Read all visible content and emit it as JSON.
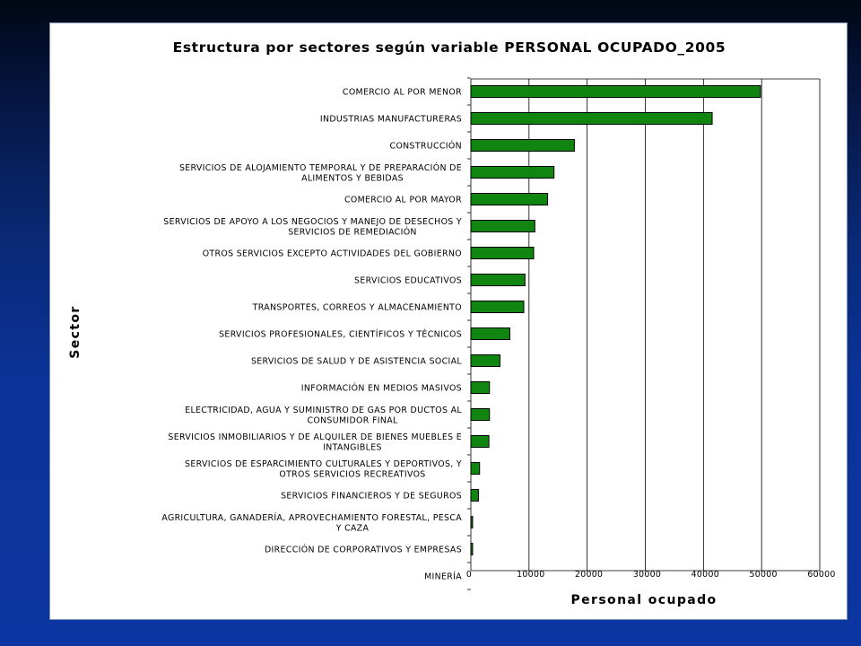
{
  "chart_data": {
    "type": "bar",
    "orientation": "horizontal",
    "title": "Estructura por sectores según variable PERSONAL OCUPADO_2005",
    "xlabel": "Personal ocupado",
    "ylabel": "Sector",
    "xlim": [
      0,
      60000
    ],
    "xticks": [
      "0",
      "10000",
      "20000",
      "30000",
      "40000",
      "50000",
      "60000"
    ],
    "grid": true,
    "bar_color": "#108510",
    "categories": [
      [
        "COMERCIO AL POR MENOR"
      ],
      [
        "INDUSTRIAS MANUFACTURERAS"
      ],
      [
        "CONSTRUCCIÓN"
      ],
      [
        "SERVICIOS DE ALOJAMIENTO TEMPORAL Y DE PREPARACIÓN DE",
        "ALIMENTOS Y BEBIDAS"
      ],
      [
        "COMERCIO AL POR MAYOR"
      ],
      [
        "SERVICIOS DE APOYO A LOS NEGOCIOS Y MANEJO DE DESECHOS Y",
        "SERVICIOS DE REMEDIACIÓN"
      ],
      [
        "OTROS SERVICIOS EXCEPTO ACTIVIDADES DEL GOBIERNO"
      ],
      [
        "SERVICIOS EDUCATIVOS"
      ],
      [
        "TRANSPORTES, CORREOS Y ALMACENAMIENTO"
      ],
      [
        "SERVICIOS PROFESIONALES, CIENTÍFICOS Y TÉCNICOS"
      ],
      [
        "SERVICIOS DE SALUD Y DE ASISTENCIA SOCIAL"
      ],
      [
        "INFORMACIÓN EN MEDIOS MASIVOS"
      ],
      [
        "ELECTRICIDAD, AGUA Y SUMINISTRO DE GAS POR DUCTOS AL",
        "CONSUMIDOR FINAL"
      ],
      [
        "SERVICIOS INMOBILIARIOS Y DE ALQUILER DE BIENES MUEBLES E",
        "INTANGIBLES"
      ],
      [
        "SERVICIOS DE ESPARCIMIENTO CULTURALES Y DEPORTIVOS, Y",
        "OTROS SERVICIOS RECREATIVOS"
      ],
      [
        "SERVICIOS FINANCIEROS Y DE SEGUROS"
      ],
      [
        "AGRICULTURA, GANADERÍA, APROVECHAMIENTO FORESTAL, PESCA",
        "Y CAZA"
      ],
      [
        "DIRECCIÓN DE CORPORATIVOS Y EMPRESAS"
      ],
      [
        "MINERÍA"
      ]
    ],
    "values": [
      49800,
      41500,
      17800,
      14300,
      13200,
      11000,
      10800,
      9300,
      9100,
      6700,
      5000,
      3200,
      3200,
      3100,
      1500,
      1300,
      300,
      300,
      0
    ]
  }
}
